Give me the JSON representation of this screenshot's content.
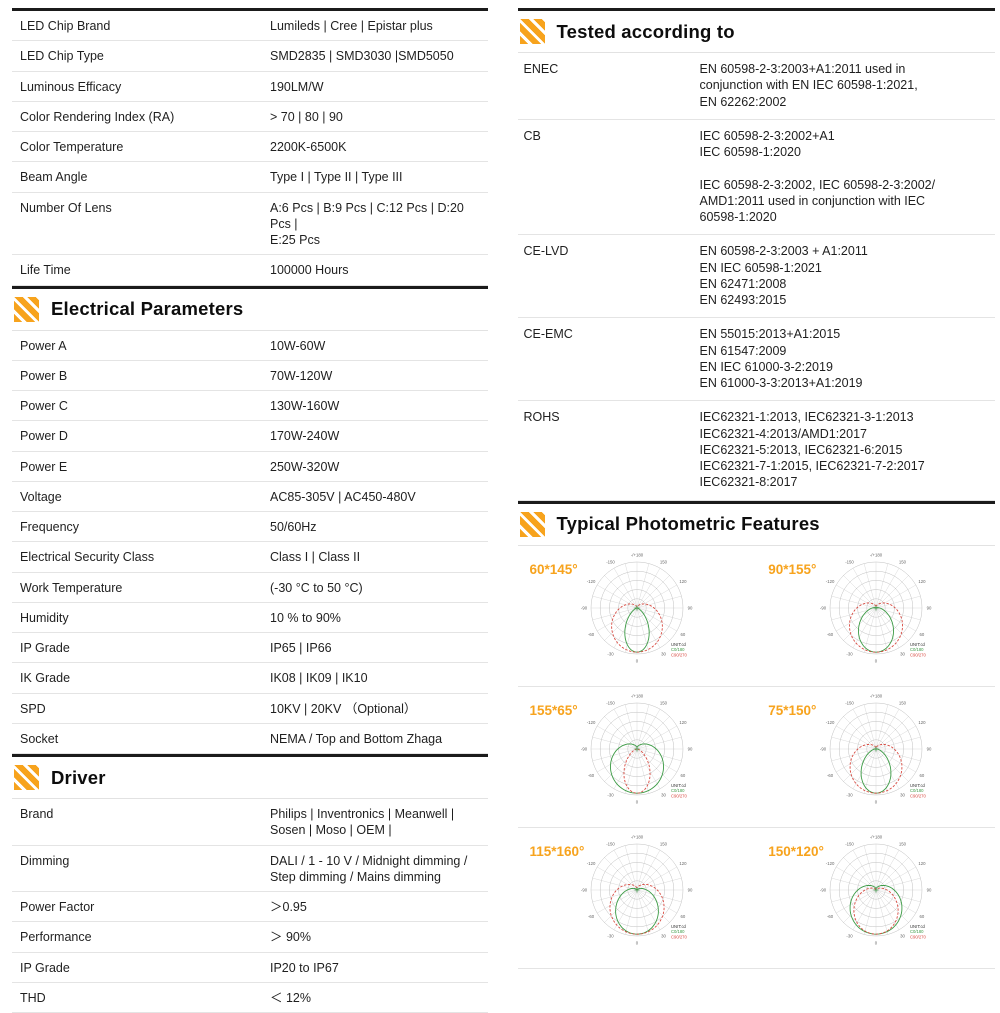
{
  "accent_color": "#f7a31d",
  "left": {
    "top_table": {
      "rows": [
        {
          "label": "LED Chip Brand",
          "value": "Lumileds | Cree | Epistar plus"
        },
        {
          "label": "LED Chip Type",
          "value": "SMD2835 | SMD3030 |SMD5050"
        },
        {
          "label": "Luminous Efficacy",
          "value": "190LM/W"
        },
        {
          "label": "Color Rendering Index (RA)",
          "value": "> 70 | 80 | 90"
        },
        {
          "label": "Color Temperature",
          "value": "2200K-6500K"
        },
        {
          "label": "Beam Angle",
          "value": "Type I | Type II | Type III"
        },
        {
          "label": "Number Of Lens",
          "value": "A:6 Pcs | B:9 Pcs | C:12 Pcs | D:20 Pcs |\nE:25 Pcs"
        },
        {
          "label": "Life Time",
          "value": "100000 Hours"
        }
      ]
    },
    "electrical": {
      "title": "Electrical Parameters",
      "rows": [
        {
          "label": "Power A",
          "value": "10W-60W"
        },
        {
          "label": "Power B",
          "value": "70W-120W"
        },
        {
          "label": "Power C",
          "value": "130W-160W"
        },
        {
          "label": "Power D",
          "value": "170W-240W"
        },
        {
          "label": "Power E",
          "value": "250W-320W"
        },
        {
          "label": "Voltage",
          "value": "AC85-305V | AC450-480V"
        },
        {
          "label": "Frequency",
          "value": "50/60Hz"
        },
        {
          "label": "Electrical Security Class",
          "value": "Class I  |  Class II"
        },
        {
          "label": "Work Temperature",
          "value": "(-30 °C to 50 °C)"
        },
        {
          "label": "Humidity",
          "value": "10 % to 90%"
        },
        {
          "label": "IP Grade",
          "value": "IP65 | IP66"
        },
        {
          "label": "IK Grade",
          "value": "IK08 | IK09 | IK10"
        },
        {
          "label": "SPD",
          "value": "10KV | 20KV （Optional）"
        },
        {
          "label": "Socket",
          "value": "NEMA / Top and Bottom Zhaga"
        }
      ]
    },
    "driver": {
      "title": "Driver",
      "rows": [
        {
          "label": "Brand",
          "value": "Philips | Inventronics | Meanwell |\nSosen | Moso | OEM |"
        },
        {
          "label": "Dimming",
          "value": "DALI / 1 - 10 V / Midnight dimming /\nStep dimming / Mains dimming"
        },
        {
          "label": "Power Factor",
          "value": "＞0.95"
        },
        {
          "label": "Performance",
          "value": "＞ 90%"
        },
        {
          "label": "IP Grade",
          "value": "IP20 to IP67"
        },
        {
          "label": "THD",
          "value": "＜ 12%"
        }
      ]
    }
  },
  "right": {
    "tested": {
      "title": "Tested according to",
      "rows": [
        {
          "label": "ENEC",
          "value": "EN 60598-2-3:2003+A1:2011 used in\nconjunction with EN IEC 60598-1:2021,\nEN 62262:2002"
        },
        {
          "label": "CB",
          "value": "IEC 60598-2-3:2002+A1\nIEC 60598-1:2020\n\nIEC 60598-2-3:2002, IEC 60598-2-3:2002/\nAMD1:2011 used in conjunction with IEC\n60598-1:2020"
        },
        {
          "label": "CE-LVD",
          "value": "EN 60598-2-3:2003 + A1:2011\nEN IEC 60598-1:2021\nEN 62471:2008\nEN 62493:2015"
        },
        {
          "label": "CE-EMC",
          "value": "EN 55015:2013+A1:2015\nEN 61547:2009\nEN IEC 61000-3-2:2019\nEN 61000-3-3:2013+A1:2019"
        },
        {
          "label": "ROHS",
          "value": "IEC62321-1:2013, IEC62321-3-1:2013\nIEC62321-4:2013/AMD1:2017\nIEC62321-5:2013, IEC62321-6:2015\nIEC62321-7-1:2015, IEC62321-7-2:2017\nIEC62321-8:2017"
        }
      ]
    },
    "photometric": {
      "title": "Typical Photometric Features",
      "legend": [
        "UNIT:cd",
        "C0/180",
        "C90/270"
      ],
      "cells": [
        {
          "label": "60*145°"
        },
        {
          "label": "90*155°"
        },
        {
          "label": "155*65°"
        },
        {
          "label": "75*150°"
        },
        {
          "label": "115*160°"
        },
        {
          "label": "150*120°"
        }
      ]
    }
  },
  "chart_data": [
    {
      "type": "line",
      "subtype": "polar-photometric",
      "title": "60*145°",
      "beam_angles_deg": [
        60,
        145
      ],
      "series": [
        {
          "name": "C0/180"
        },
        {
          "name": "C90/270"
        }
      ],
      "legend_position": "bottom-right"
    },
    {
      "type": "line",
      "subtype": "polar-photometric",
      "title": "90*155°",
      "beam_angles_deg": [
        90,
        155
      ],
      "series": [
        {
          "name": "C0/180"
        },
        {
          "name": "C90/270"
        }
      ],
      "legend_position": "bottom-right"
    },
    {
      "type": "line",
      "subtype": "polar-photometric",
      "title": "155*65°",
      "beam_angles_deg": [
        155,
        65
      ],
      "series": [
        {
          "name": "C0/180"
        },
        {
          "name": "C90/270"
        }
      ],
      "legend_position": "bottom-right"
    },
    {
      "type": "line",
      "subtype": "polar-photometric",
      "title": "75*150°",
      "beam_angles_deg": [
        75,
        150
      ],
      "series": [
        {
          "name": "C0/180"
        },
        {
          "name": "C90/270"
        }
      ],
      "legend_position": "bottom-right"
    },
    {
      "type": "line",
      "subtype": "polar-photometric",
      "title": "115*160°",
      "beam_angles_deg": [
        115,
        160
      ],
      "series": [
        {
          "name": "C0/180"
        },
        {
          "name": "C90/270"
        }
      ],
      "legend_position": "bottom-right"
    },
    {
      "type": "line",
      "subtype": "polar-photometric",
      "title": "150*120°",
      "beam_angles_deg": [
        150,
        120
      ],
      "series": [
        {
          "name": "C0/180"
        },
        {
          "name": "C90/270"
        }
      ],
      "legend_position": "bottom-right"
    }
  ]
}
